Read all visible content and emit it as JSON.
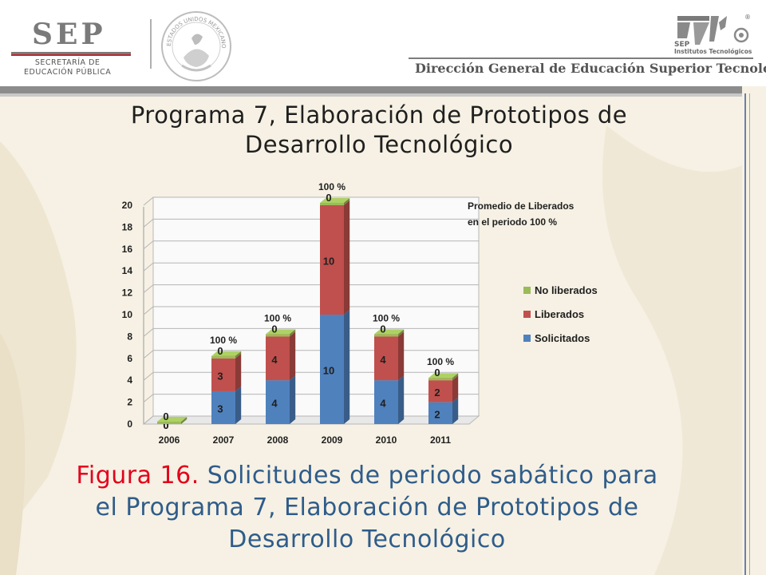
{
  "header": {
    "sep_word": "SEP",
    "sep_subtitle_line1": "SECRETARÍA DE",
    "sep_subtitle_line2": "EDUCACIÓN PÚBLICA",
    "seal_text": "ESTADOS UNIDOS MEXICANOS",
    "right_logo_line1": "SEP",
    "right_logo_line2": "Institutos Tecnológicos",
    "registered": "®",
    "dgest": "Dirección General de Educación Superior Tecnológica"
  },
  "title_line1": "Programa 7, Elaboración de Prototipos de",
  "title_line2": "Desarrollo Tecnológico",
  "caption": {
    "figure_label": "Figura 16.",
    "line1_rest": " Solicitudes de periodo sabático para",
    "line2": "el Programa 7, Elaboración de Prototipos de",
    "line3": "Desarrollo Tecnológico"
  },
  "colors": {
    "solicitados": "#4f81bd",
    "liberados": "#c0504d",
    "no_liberados": "#9bbb59",
    "caption_blue": "#2f5c8a",
    "caption_red": "#e3001b"
  },
  "chart_data": {
    "type": "bar",
    "stacked": true,
    "categories": [
      "2006",
      "2007",
      "2008",
      "2009",
      "2010",
      "2011"
    ],
    "series": [
      {
        "name": "Solicitados",
        "values": [
          0,
          3,
          4,
          10,
          4,
          2
        ]
      },
      {
        "name": "Liberados",
        "values": [
          0,
          3,
          4,
          10,
          4,
          2
        ]
      },
      {
        "name": "No liberados",
        "values": [
          0,
          0,
          0,
          0,
          0,
          0
        ]
      }
    ],
    "top_labels": [
      "",
      "100 %",
      "100 %",
      "100 %",
      "100 %",
      "100 %"
    ],
    "ylim": [
      0,
      20
    ],
    "yticks": [
      0,
      2,
      4,
      6,
      8,
      10,
      12,
      14,
      16,
      18,
      20
    ],
    "grid": true,
    "legend_position": "right",
    "annotation_line1": "Promedio de Liberados",
    "annotation_line2": "en el periodo 100 %"
  }
}
